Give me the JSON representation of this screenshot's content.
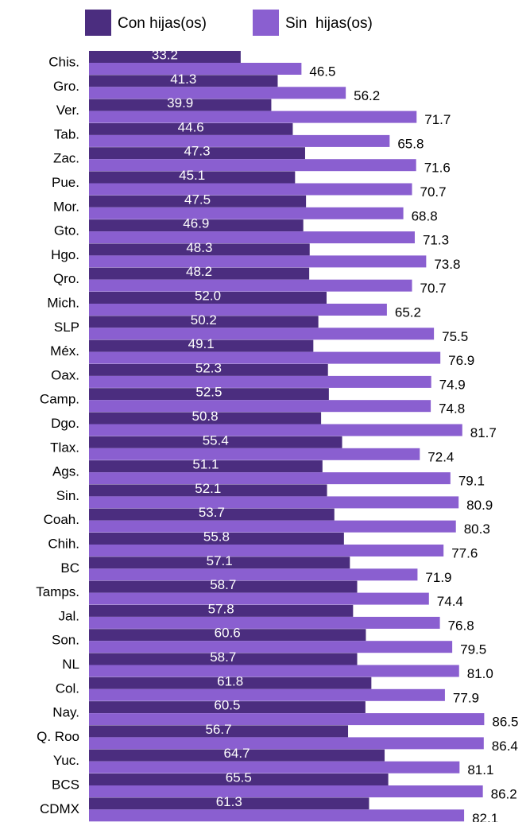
{
  "chart_data": {
    "type": "hbar",
    "categories": [
      "Chis.",
      "Gro.",
      "Ver.",
      "Tab.",
      "Zac.",
      "Pue.",
      "Mor.",
      "Gto.",
      "Hgo.",
      "Qro.",
      "Mich.",
      "SLP",
      "Méx.",
      "Oax.",
      "Camp.",
      "Dgo.",
      "Tlax.",
      "Ags.",
      "Sin.",
      "Coah.",
      "Chih.",
      "BC",
      "Tamps.",
      "Jal.",
      "Son.",
      "NL",
      "Col.",
      "Nay.",
      "Q. Roo",
      "Yuc.",
      "BCS",
      "CDMX"
    ],
    "series": [
      {
        "name": "Con hijas(os)",
        "color": "#4b2d7f",
        "values": [
          33.2,
          41.3,
          39.9,
          44.6,
          47.3,
          45.1,
          47.5,
          46.9,
          48.3,
          48.2,
          52.0,
          50.2,
          49.1,
          52.3,
          52.5,
          50.8,
          55.4,
          51.1,
          52.1,
          53.7,
          55.8,
          57.1,
          58.7,
          57.8,
          60.6,
          58.7,
          61.8,
          60.5,
          56.7,
          64.7,
          65.5,
          61.3
        ],
        "value_labels": [
          "33.2",
          "41.3",
          "39.9",
          "44.6",
          "47.3",
          "45.1",
          "47.5",
          "46.9",
          "48.3",
          "48.2",
          "52.0",
          "50.2",
          "49.1",
          "52.3",
          "52.5",
          "50.8",
          "55.4",
          "51.1",
          "52.1",
          "53.7",
          "55.8",
          "57.1",
          "58.7",
          "57.8",
          "60.6",
          "58.7",
          "61.8",
          "60.5",
          "56.7",
          "64.7",
          "65.5",
          "61.3"
        ]
      },
      {
        "name": "Sin  hijas(os)",
        "color": "#8a5fd0",
        "values": [
          46.5,
          56.2,
          71.7,
          65.8,
          71.6,
          70.7,
          68.8,
          71.3,
          73.8,
          70.7,
          65.2,
          75.5,
          76.9,
          74.9,
          74.8,
          81.7,
          72.4,
          79.1,
          80.9,
          80.3,
          77.6,
          71.9,
          74.4,
          76.8,
          79.5,
          81.0,
          77.9,
          86.5,
          86.4,
          81.1,
          86.2,
          82.1
        ],
        "value_labels": [
          "46.5",
          "56.2",
          "71.7",
          "65.8",
          "71.6",
          "70.7",
          "68.8",
          "71.3",
          "73.8",
          "70.7",
          "65.2",
          "75.5",
          "76.9",
          "74.9",
          "74.8",
          "81.7",
          "72.4",
          "79.1",
          "80.9",
          "80.3",
          "77.6",
          "71.9",
          "74.4",
          "76.8",
          "79.5",
          "81.0",
          "77.9",
          "86.5",
          "86.4",
          "81.1",
          "86.2",
          "82.1"
        ]
      }
    ],
    "xlim": [
      0,
      96
    ]
  }
}
